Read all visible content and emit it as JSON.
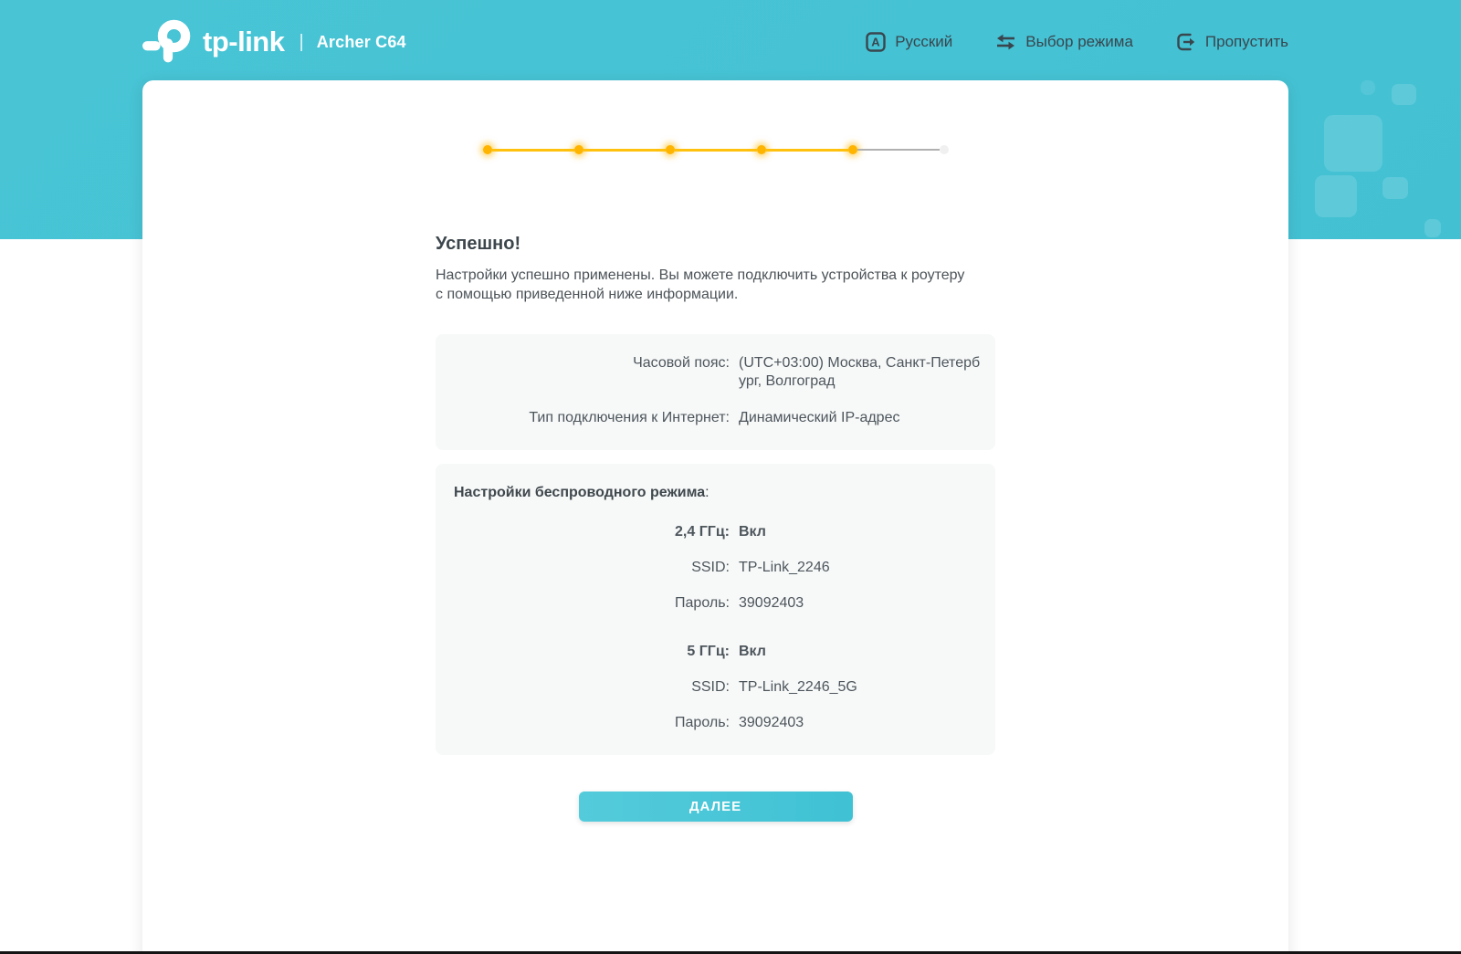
{
  "header": {
    "brand": "tp-link",
    "separator": "|",
    "model": "Archer C64",
    "menu": [
      {
        "label": "Русский",
        "icon": "language-icon"
      },
      {
        "label": "Выбор режима",
        "icon": "mode-switch-icon"
      },
      {
        "label": "Пропустить",
        "icon": "skip-icon"
      }
    ]
  },
  "stepper": {
    "total_steps": 6,
    "completed_steps": 5
  },
  "main": {
    "title": "Успешно!",
    "description": "Настройки успешно применены. Вы можете подключить устройства к роутеру с помощью приведенной ниже информации.",
    "summary": {
      "rows": [
        {
          "label": "Часовой пояс:",
          "value": "(UTC+03:00) Москва, Санкт-Петербург, Волгоград"
        },
        {
          "label": "Тип подключения к Интернет:",
          "value": "Динамический IP-адрес"
        }
      ]
    },
    "wireless": {
      "title": "Настройки беспроводного режима",
      "title_suffix": ":",
      "bands": [
        {
          "rows": [
            {
              "label": "2,4 ГГц:",
              "value": "Вкл"
            },
            {
              "label": "SSID:",
              "value": "TP-Link_2246"
            },
            {
              "label": "Пароль:",
              "value": "39092403"
            }
          ]
        },
        {
          "rows": [
            {
              "label": "5 ГГц:",
              "value": "Вкл"
            },
            {
              "label": "SSID:",
              "value": "TP-Link_2246_5G"
            },
            {
              "label": "Пароль:",
              "value": "39092403"
            }
          ]
        }
      ]
    },
    "next_button": "ДАЛЕЕ"
  },
  "colors": {
    "header_teal": "#45c2d3",
    "step_done": "#ffb400",
    "step_todo": "#b3b3b3",
    "button_teal": "#46c6d7",
    "box_bg": "#f7f8f8",
    "text_dark": "#3c464c"
  }
}
